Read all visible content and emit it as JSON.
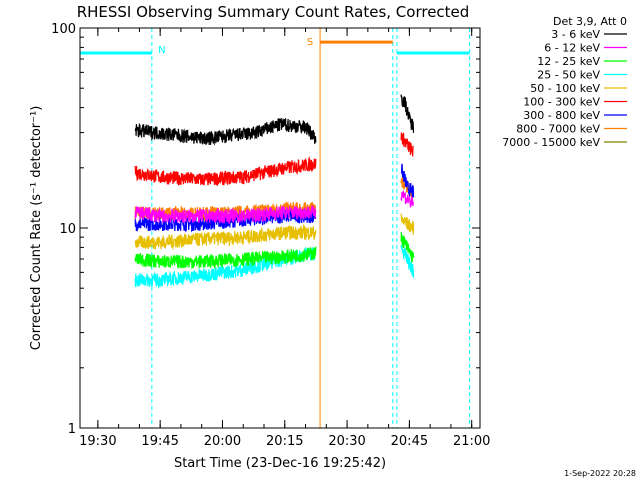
{
  "chart_data": {
    "type": "line",
    "title": "RHESSI Observing Summary Count Rates, Corrected",
    "xlabel": "Start Time (23-Dec-16 19:25:42)",
    "ylabel": "Corrected Count Rate (s⁻¹ detector⁻¹)",
    "yscale": "log",
    "ylim": [
      1,
      100
    ],
    "xlim": [
      "19:25:42",
      "21:02"
    ],
    "x_ticks": [
      "19:30",
      "19:45",
      "20:00",
      "20:15",
      "20:30",
      "20:45",
      "21:00"
    ],
    "y_ticks": [
      "1",
      "10",
      "100"
    ],
    "legend_title": "Det 3,9, Att 0",
    "legend_position": "top-right, outside plot",
    "timestamp": "1-Sep-2022 20:28",
    "flags": [
      {
        "label": "",
        "type": "saa",
        "start": "19:25:42",
        "end": "19:43:00",
        "color": "#00ffff"
      },
      {
        "label": "N",
        "type": "night",
        "start": "19:43:00",
        "end": "19:43:00",
        "color": "#00ffff"
      },
      {
        "label": "S",
        "type": "saa",
        "start": "20:23:30",
        "end": "20:41:00",
        "color": "#ff8000"
      },
      {
        "label": "",
        "type": "night",
        "start": "20:42:00",
        "end": "20:59:30",
        "color": "#00ffff"
      }
    ],
    "vertical_lines": [
      {
        "time": "19:25:42",
        "color": "#00ffff",
        "style": "solid"
      },
      {
        "time": "19:43:00",
        "color": "#00ffff",
        "style": "dashed"
      },
      {
        "time": "20:23:30",
        "color": "#ff8000",
        "style": "solid"
      },
      {
        "time": "20:41:00",
        "color": "#00ffff",
        "style": "dashed"
      },
      {
        "time": "20:42:00",
        "color": "#00ffff",
        "style": "dashed"
      },
      {
        "time": "20:59:30",
        "color": "#00ffff",
        "style": "dashed"
      }
    ],
    "series": [
      {
        "name": "3 - 6 keV",
        "color": "#000000",
        "segments": [
          {
            "x": [
              "19:39:00",
              "19:44:00",
              "19:50:00",
              "19:56:00",
              "20:02:00",
              "20:08:00",
              "20:14:00",
              "20:20:00",
              "20:22:30"
            ],
            "y": [
              31,
              30,
              29,
              28,
              29,
              30,
              33,
              32,
              28
            ]
          },
          {
            "x": [
              "20:43:00",
              "20:44:00",
              "20:45:00",
              "20:46:00"
            ],
            "y": [
              45,
              42,
              35,
              32
            ]
          }
        ]
      },
      {
        "name": "6 - 12 keV",
        "color": "#ff00ff",
        "segments": [
          {
            "x": [
              "19:39:00",
              "19:45:00",
              "19:55:00",
              "20:05:00",
              "20:15:00",
              "20:22:30"
            ],
            "y": [
              12,
              11.5,
              11.5,
              11.5,
              12,
              12
            ]
          },
          {
            "x": [
              "20:43:00",
              "20:44:30",
              "20:46:00"
            ],
            "y": [
              15,
              14,
              13
            ]
          }
        ]
      },
      {
        "name": "12 - 25 keV",
        "color": "#00ff00",
        "segments": [
          {
            "x": [
              "19:39:00",
              "19:45:00",
              "19:55:00",
              "20:05:00",
              "20:15:00",
              "20:22:30"
            ],
            "y": [
              7,
              6.8,
              6.8,
              7,
              7.2,
              7.5
            ]
          },
          {
            "x": [
              "20:43:00",
              "20:44:30",
              "20:46:00"
            ],
            "y": [
              9,
              8,
              7
            ]
          }
        ]
      },
      {
        "name": "25 - 50 keV",
        "color": "#00ffff",
        "segments": [
          {
            "x": [
              "19:39:00",
              "19:45:00",
              "19:55:00",
              "20:05:00",
              "20:15:00",
              "20:22:30"
            ],
            "y": [
              5.5,
              5.5,
              5.8,
              6.2,
              7,
              7.5
            ]
          },
          {
            "x": [
              "20:43:00",
              "20:44:30",
              "20:46:00"
            ],
            "y": [
              8,
              7,
              6
            ]
          }
        ]
      },
      {
        "name": "50 - 100 keV",
        "color": "#e6c000",
        "segments": [
          {
            "x": [
              "19:39:00",
              "19:45:00",
              "19:55:00",
              "20:05:00",
              "20:15:00",
              "20:22:30"
            ],
            "y": [
              8.5,
              8.5,
              8.8,
              9,
              9.5,
              9.5
            ]
          },
          {
            "x": [
              "20:43:00",
              "20:44:30",
              "20:46:00"
            ],
            "y": [
              11,
              10.5,
              10
            ]
          }
        ]
      },
      {
        "name": "100 - 300 keV",
        "color": "#ff0000",
        "segments": [
          {
            "x": [
              "19:39:00",
              "19:45:00",
              "19:55:00",
              "20:05:00",
              "20:15:00",
              "20:22:30"
            ],
            "y": [
              19,
              18,
              17.5,
              18,
              20,
              21
            ]
          },
          {
            "x": [
              "20:43:00",
              "20:44:30",
              "20:46:00"
            ],
            "y": [
              29,
              26,
              24
            ]
          }
        ]
      },
      {
        "name": "300 - 800 keV",
        "color": "#0000ff",
        "segments": [
          {
            "x": [
              "19:39:00",
              "19:45:00",
              "19:55:00",
              "20:05:00",
              "20:15:00",
              "20:22:30"
            ],
            "y": [
              10.5,
              10.5,
              10.5,
              11,
              11.5,
              11.5
            ]
          },
          {
            "x": [
              "20:43:00",
              "20:44:30",
              "20:46:00"
            ],
            "y": [
              20,
              16,
              15
            ]
          }
        ]
      },
      {
        "name": "800 - 7000 keV",
        "color": "#ff8000",
        "segments": [
          {
            "x": [
              "19:39:00",
              "19:45:00",
              "19:55:00",
              "20:05:00",
              "20:15:00",
              "20:22:30"
            ],
            "y": [
              12,
              11.8,
              11.8,
              12,
              12.5,
              12.5
            ]
          },
          {
            "x": [
              "20:43:00",
              "20:44:30",
              "20:46:00"
            ],
            "y": [
              17,
              16,
              15
            ]
          }
        ]
      },
      {
        "name": "7000 - 15000 keV",
        "color": "#808000",
        "segments": []
      }
    ]
  }
}
